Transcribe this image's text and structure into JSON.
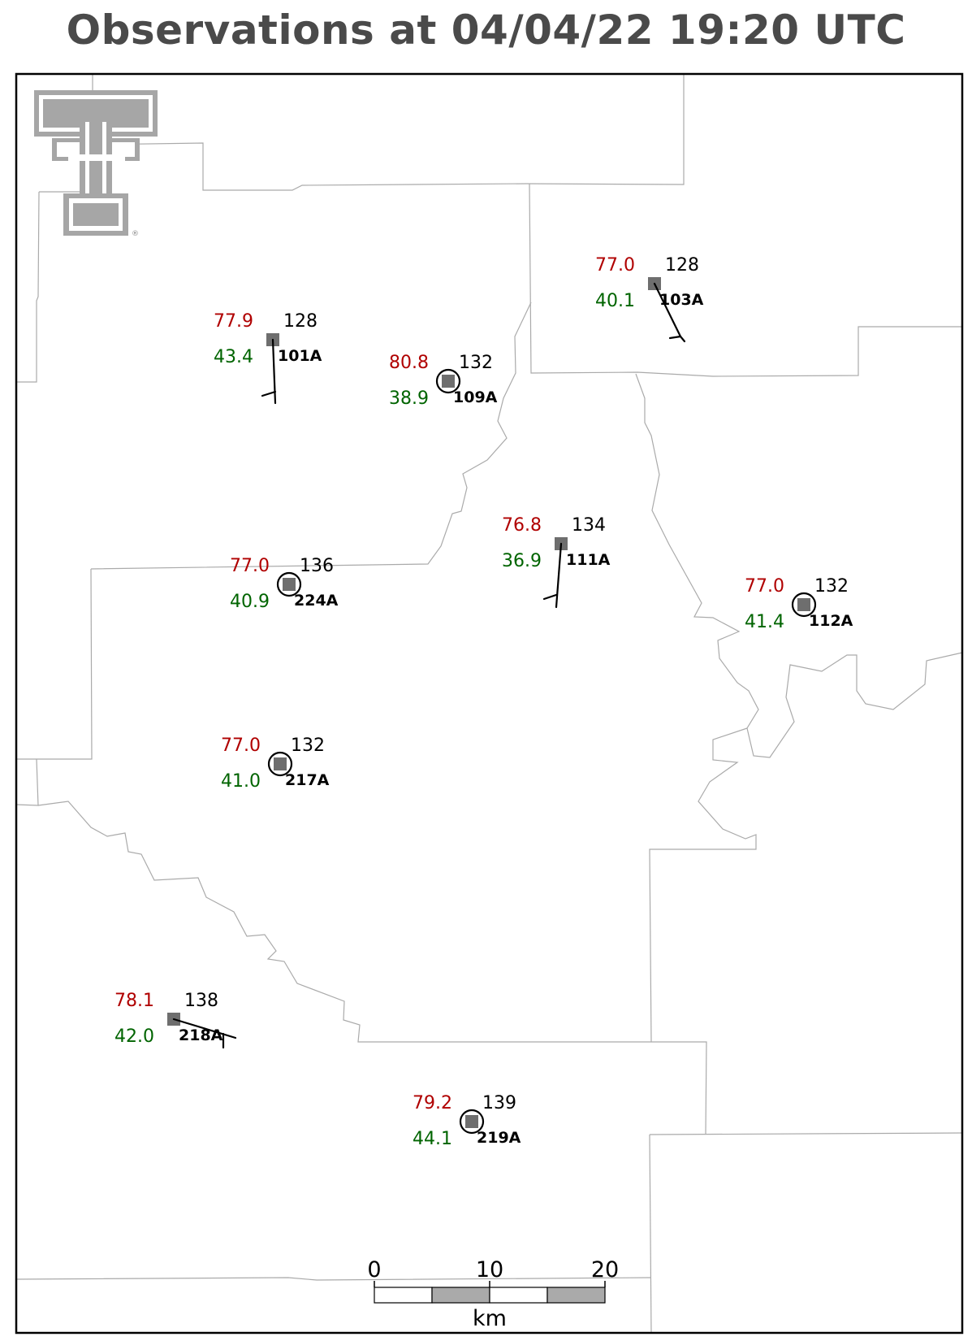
{
  "title": "Observations at 04/04/22 19:20 UTC",
  "logo": {
    "mark": "®",
    "icon": "texas-tech-double-t-logo"
  },
  "colors": {
    "temperature": "#b00000",
    "dewpoint": "#006400",
    "pressure": "#000000",
    "station": "#6e6e6e",
    "county_border": "#aaaaaa"
  },
  "scale_bar": {
    "ticks": [
      "0",
      "10",
      "20"
    ],
    "unit": "km"
  },
  "stations": [
    {
      "id": "101A",
      "temp": "77.9",
      "dewpoint": "43.4",
      "pressure": "128",
      "calm": false
    },
    {
      "id": "109A",
      "temp": "80.8",
      "dewpoint": "38.9",
      "pressure": "132",
      "calm": true
    },
    {
      "id": "103A",
      "temp": "77.0",
      "dewpoint": "40.1",
      "pressure": "128",
      "calm": false
    },
    {
      "id": "111A",
      "temp": "76.8",
      "dewpoint": "36.9",
      "pressure": "134",
      "calm": false
    },
    {
      "id": "224A",
      "temp": "77.0",
      "dewpoint": "40.9",
      "pressure": "136",
      "calm": true
    },
    {
      "id": "112A",
      "temp": "77.0",
      "dewpoint": "41.4",
      "pressure": "132",
      "calm": true
    },
    {
      "id": "217A",
      "temp": "77.0",
      "dewpoint": "41.0",
      "pressure": "132",
      "calm": true
    },
    {
      "id": "218A",
      "temp": "78.1",
      "dewpoint": "42.0",
      "pressure": "138",
      "calm": false
    },
    {
      "id": "219A",
      "temp": "79.2",
      "dewpoint": "44.1",
      "pressure": "139",
      "calm": true
    }
  ]
}
